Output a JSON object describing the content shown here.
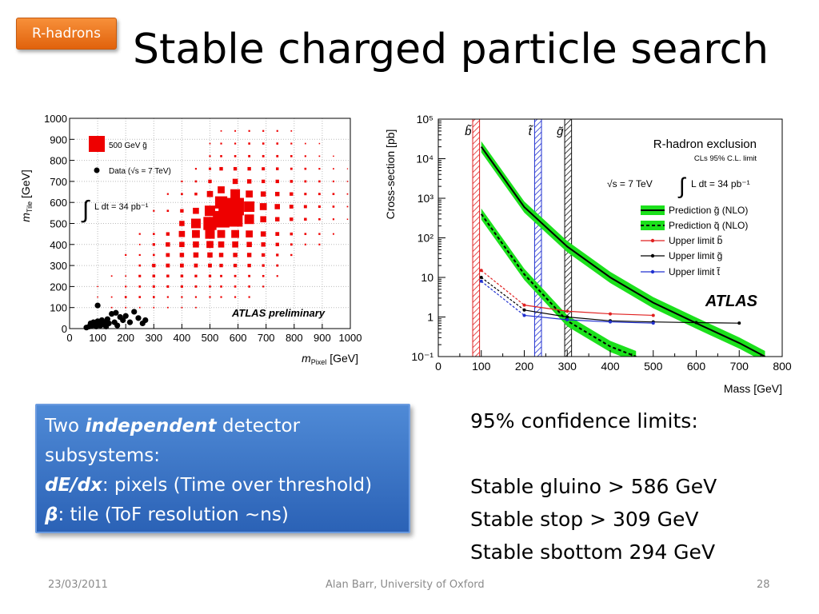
{
  "slide": {
    "tag": "R-hadrons",
    "title": "Stable charged particle search",
    "box": {
      "l1a": "Two ",
      "l1b": "independent",
      "l1c": " detector",
      "l2": "subsystems:",
      "l3a": "dE/dx",
      "l3b": ": pixels (Time over threshold)",
      "l4a": "β",
      "l4b": ": tile  (ToF resolution  ~ns)"
    },
    "limits": {
      "heading": "95% confidence limits:",
      "items": [
        "Stable gluino > 586 GeV",
        "Stable stop >  309 GeV",
        "Stable sbottom 294 GeV"
      ]
    },
    "footer": {
      "date": "23/03/2011",
      "author": "Alan Barr, University of Oxford",
      "page": "28"
    }
  },
  "chart_data": [
    {
      "type": "scatter",
      "xlabel_main": "m",
      "xlabel_sub": "Pixel",
      "xlabel_unit": " [GeV]",
      "ylabel_main": "m",
      "ylabel_sub": "Tile",
      "ylabel_unit": " [GeV]",
      "xlim": [
        0,
        1000
      ],
      "ylim": [
        0,
        1000
      ],
      "xticks": [
        "0",
        "100",
        "200",
        "300",
        "400",
        "500",
        "600",
        "700",
        "800",
        "900",
        "1000"
      ],
      "yticks": [
        "0",
        "100",
        "200",
        "300",
        "400",
        "500",
        "600",
        "700",
        "800",
        "900",
        "1000"
      ],
      "grid": true,
      "legend": [
        "500 GeV g̃",
        "Data (√s = 7 TeV)"
      ],
      "lumi": "L dt = 34 pb⁻¹",
      "experiment": "ATLAS preliminary",
      "signal_color": "#ee0000",
      "data_color": "#000000",
      "signal_boxes": [
        [
          590,
          580,
          1.0
        ],
        [
          560,
          560,
          0.95
        ],
        [
          540,
          520,
          0.95
        ],
        [
          590,
          520,
          0.85
        ],
        [
          640,
          580,
          0.6
        ],
        [
          640,
          520,
          0.55
        ],
        [
          500,
          500,
          0.75
        ],
        [
          540,
          600,
          0.7
        ],
        [
          500,
          560,
          0.6
        ],
        [
          590,
          640,
          0.55
        ],
        [
          640,
          640,
          0.4
        ],
        [
          450,
          500,
          0.55
        ],
        [
          450,
          450,
          0.45
        ],
        [
          500,
          450,
          0.55
        ],
        [
          540,
          450,
          0.45
        ],
        [
          590,
          450,
          0.45
        ],
        [
          540,
          400,
          0.35
        ],
        [
          590,
          400,
          0.35
        ],
        [
          500,
          400,
          0.4
        ],
        [
          450,
          400,
          0.35
        ],
        [
          640,
          450,
          0.4
        ],
        [
          690,
          580,
          0.4
        ],
        [
          690,
          520,
          0.35
        ],
        [
          690,
          640,
          0.3
        ],
        [
          640,
          400,
          0.3
        ],
        [
          690,
          450,
          0.3
        ],
        [
          400,
          450,
          0.35
        ],
        [
          400,
          400,
          0.3
        ],
        [
          400,
          350,
          0.25
        ],
        [
          450,
          350,
          0.3
        ],
        [
          500,
          350,
          0.3
        ],
        [
          540,
          350,
          0.25
        ],
        [
          590,
          350,
          0.25
        ],
        [
          640,
          350,
          0.25
        ],
        [
          690,
          400,
          0.25
        ],
        [
          740,
          580,
          0.3
        ],
        [
          740,
          520,
          0.25
        ],
        [
          740,
          640,
          0.25
        ],
        [
          540,
          660,
          0.4
        ],
        [
          590,
          700,
          0.3
        ],
        [
          640,
          700,
          0.25
        ],
        [
          500,
          640,
          0.35
        ],
        [
          450,
          560,
          0.35
        ],
        [
          400,
          500,
          0.3
        ],
        [
          350,
          400,
          0.25
        ],
        [
          350,
          350,
          0.22
        ],
        [
          300,
          300,
          0.2
        ],
        [
          350,
          300,
          0.22
        ],
        [
          400,
          300,
          0.22
        ],
        [
          450,
          300,
          0.22
        ],
        [
          500,
          300,
          0.22
        ],
        [
          540,
          300,
          0.2
        ],
        [
          590,
          300,
          0.2
        ],
        [
          640,
          300,
          0.2
        ],
        [
          690,
          350,
          0.2
        ],
        [
          740,
          450,
          0.22
        ],
        [
          740,
          400,
          0.2
        ],
        [
          790,
          580,
          0.22
        ],
        [
          790,
          520,
          0.2
        ],
        [
          790,
          640,
          0.2
        ],
        [
          840,
          580,
          0.18
        ],
        [
          840,
          520,
          0.16
        ],
        [
          690,
          700,
          0.2
        ],
        [
          740,
          700,
          0.2
        ],
        [
          640,
          760,
          0.2
        ],
        [
          590,
          760,
          0.2
        ],
        [
          540,
          760,
          0.2
        ],
        [
          690,
          760,
          0.18
        ],
        [
          740,
          760,
          0.16
        ],
        [
          790,
          700,
          0.16
        ],
        [
          300,
          250,
          0.16
        ],
        [
          250,
          250,
          0.14
        ],
        [
          300,
          200,
          0.14
        ],
        [
          250,
          200,
          0.12
        ],
        [
          350,
          250,
          0.16
        ],
        [
          400,
          250,
          0.16
        ],
        [
          450,
          250,
          0.15
        ],
        [
          500,
          250,
          0.15
        ],
        [
          200,
          150,
          0.12
        ],
        [
          250,
          150,
          0.12
        ],
        [
          300,
          150,
          0.12
        ],
        [
          350,
          200,
          0.14
        ],
        [
          400,
          200,
          0.14
        ],
        [
          450,
          200,
          0.13
        ],
        [
          540,
          250,
          0.13
        ],
        [
          590,
          250,
          0.13
        ],
        [
          640,
          250,
          0.13
        ],
        [
          690,
          300,
          0.15
        ],
        [
          740,
          350,
          0.15
        ],
        [
          790,
          450,
          0.16
        ],
        [
          840,
          640,
          0.14
        ],
        [
          890,
          580,
          0.14
        ],
        [
          890,
          640,
          0.13
        ],
        [
          840,
          700,
          0.13
        ],
        [
          790,
          760,
          0.13
        ],
        [
          740,
          820,
          0.13
        ],
        [
          690,
          820,
          0.13
        ],
        [
          640,
          820,
          0.13
        ],
        [
          590,
          820,
          0.12
        ],
        [
          540,
          820,
          0.12
        ],
        [
          500,
          760,
          0.14
        ],
        [
          500,
          700,
          0.2
        ],
        [
          450,
          640,
          0.16
        ],
        [
          400,
          560,
          0.2
        ],
        [
          350,
          450,
          0.2
        ],
        [
          890,
          520,
          0.12
        ],
        [
          940,
          580,
          0.12
        ],
        [
          940,
          640,
          0.12
        ],
        [
          890,
          700,
          0.12
        ],
        [
          840,
          760,
          0.12
        ],
        [
          790,
          820,
          0.12
        ],
        [
          740,
          880,
          0.12
        ],
        [
          690,
          880,
          0.12
        ],
        [
          640,
          880,
          0.12
        ],
        [
          590,
          880,
          0.1
        ],
        [
          540,
          880,
          0.1
        ],
        [
          500,
          820,
          0.1
        ],
        [
          450,
          700,
          0.12
        ],
        [
          400,
          640,
          0.12
        ],
        [
          350,
          560,
          0.12
        ],
        [
          300,
          450,
          0.12
        ],
        [
          300,
          400,
          0.15
        ],
        [
          250,
          300,
          0.12
        ],
        [
          200,
          200,
          0.1
        ],
        [
          150,
          150,
          0.08
        ],
        [
          150,
          100,
          0.08
        ],
        [
          200,
          100,
          0.08
        ],
        [
          250,
          100,
          0.08
        ],
        [
          350,
          150,
          0.1
        ],
        [
          400,
          150,
          0.1
        ],
        [
          450,
          150,
          0.1
        ],
        [
          500,
          200,
          0.12
        ],
        [
          540,
          200,
          0.12
        ],
        [
          590,
          200,
          0.12
        ],
        [
          640,
          200,
          0.12
        ],
        [
          690,
          250,
          0.12
        ],
        [
          740,
          300,
          0.13
        ],
        [
          790,
          400,
          0.13
        ],
        [
          840,
          450,
          0.12
        ],
        [
          890,
          450,
          0.11
        ],
        [
          940,
          520,
          0.1
        ],
        [
          990,
          580,
          0.08
        ],
        [
          990,
          640,
          0.08
        ],
        [
          940,
          700,
          0.1
        ],
        [
          890,
          760,
          0.1
        ],
        [
          840,
          820,
          0.1
        ],
        [
          790,
          880,
          0.1
        ],
        [
          740,
          940,
          0.1
        ],
        [
          690,
          940,
          0.1
        ],
        [
          640,
          940,
          0.1
        ],
        [
          590,
          940,
          0.09
        ],
        [
          540,
          940,
          0.08
        ],
        [
          500,
          880,
          0.08
        ],
        [
          450,
          760,
          0.1
        ],
        [
          400,
          700,
          0.1
        ],
        [
          350,
          640,
          0.1
        ],
        [
          300,
          560,
          0.1
        ],
        [
          250,
          450,
          0.1
        ],
        [
          200,
          350,
          0.1
        ],
        [
          150,
          250,
          0.08
        ],
        [
          100,
          200,
          0.07
        ],
        [
          100,
          150,
          0.07
        ],
        [
          300,
          100,
          0.08
        ],
        [
          350,
          100,
          0.08
        ],
        [
          400,
          100,
          0.08
        ],
        [
          450,
          100,
          0.08
        ],
        [
          500,
          150,
          0.1
        ],
        [
          540,
          150,
          0.1
        ],
        [
          590,
          150,
          0.1
        ],
        [
          640,
          150,
          0.1
        ],
        [
          690,
          200,
          0.1
        ],
        [
          740,
          250,
          0.1
        ],
        [
          790,
          350,
          0.11
        ],
        [
          840,
          400,
          0.1
        ],
        [
          890,
          400,
          0.1
        ],
        [
          940,
          450,
          0.09
        ],
        [
          990,
          520,
          0.07
        ],
        [
          990,
          700,
          0.07
        ],
        [
          940,
          760,
          0.08
        ],
        [
          890,
          820,
          0.08
        ],
        [
          840,
          880,
          0.08
        ],
        [
          790,
          940,
          0.08
        ],
        [
          940,
          820,
          0.07
        ],
        [
          890,
          880,
          0.07
        ],
        [
          990,
          760,
          0.06
        ],
        [
          250,
          350,
          0.1
        ],
        [
          200,
          250,
          0.08
        ],
        [
          250,
          400,
          0.08
        ],
        [
          300,
          350,
          0.12
        ]
      ],
      "data_points": [
        [
          60,
          5
        ],
        [
          70,
          10
        ],
        [
          75,
          25
        ],
        [
          80,
          15
        ],
        [
          85,
          30
        ],
        [
          90,
          20
        ],
        [
          95,
          10
        ],
        [
          100,
          35
        ],
        [
          105,
          25
        ],
        [
          110,
          15
        ],
        [
          115,
          40
        ],
        [
          120,
          20
        ],
        [
          125,
          30
        ],
        [
          130,
          10
        ],
        [
          135,
          45
        ],
        [
          140,
          25
        ],
        [
          150,
          70
        ],
        [
          160,
          30
        ],
        [
          170,
          15
        ],
        [
          180,
          55
        ],
        [
          190,
          40
        ],
        [
          200,
          60
        ],
        [
          215,
          30
        ],
        [
          230,
          80
        ],
        [
          245,
          50
        ],
        [
          260,
          25
        ],
        [
          270,
          40
        ],
        [
          100,
          110
        ],
        [
          165,
          75
        ]
      ]
    },
    {
      "type": "line",
      "title": "R-hadron exclusion",
      "subtitle": "CLs 95% C.L. limit",
      "energy": "√s = 7 TeV",
      "lumi": "L dt = 34 pb⁻¹",
      "experiment": "ATLAS",
      "xlabel": "Mass [GeV]",
      "ylabel": "Cross-section [pb]",
      "xlim": [
        0,
        800
      ],
      "ylim": [
        0.1,
        100000
      ],
      "yscale": "log",
      "xticks": [
        "0",
        "100",
        "200",
        "300",
        "400",
        "500",
        "600",
        "700",
        "800"
      ],
      "yticks": [
        "10⁻¹",
        "1",
        "10",
        "10²",
        "10³",
        "10⁴",
        "10⁵"
      ],
      "legend_placement": "right",
      "exclusion_bands": [
        {
          "label": "b̃",
          "from": 80,
          "to": 96,
          "color": "#e02020"
        },
        {
          "label": "t̃",
          "from": 224,
          "to": 240,
          "color": "#2030d0"
        },
        {
          "label": "g̃",
          "from": 294,
          "to": 310,
          "color": "#111111"
        }
      ],
      "series": [
        {
          "name": "Prediction g̃ (NLO)",
          "color": "#000000",
          "band": "#1ce01c",
          "style": "solid",
          "x": [
            100,
            200,
            300,
            400,
            500,
            600,
            700,
            760
          ],
          "y": [
            20000,
            600,
            60,
            10,
            2.3,
            0.7,
            0.22,
            0.1
          ]
        },
        {
          "name": "Prediction q̃ (NLO)",
          "color": "#000000",
          "band": "#1ce01c",
          "style": "dashed",
          "x": [
            100,
            200,
            300,
            400,
            460
          ],
          "y": [
            400,
            12,
            0.8,
            0.18,
            0.1
          ]
        },
        {
          "name": "Upper limit b̃",
          "color": "#e02020",
          "style": "solid",
          "marker": "triangle-down",
          "x": [
            100,
            200,
            300,
            400,
            500
          ],
          "y": [
            15,
            2,
            1.4,
            1.2,
            1.1
          ],
          "dashed_until": 200
        },
        {
          "name": "Upper limit g̃",
          "color": "#000000",
          "style": "solid",
          "marker": "dot",
          "x": [
            100,
            200,
            300,
            400,
            500,
            600,
            700
          ],
          "y": [
            10,
            1.5,
            1.0,
            0.8,
            0.75,
            0.72,
            0.7
          ],
          "dashed_until": 200
        },
        {
          "name": "Upper limit t̃",
          "color": "#2030d0",
          "style": "solid",
          "marker": "triangle-up",
          "x": [
            100,
            200,
            300,
            400,
            500
          ],
          "y": [
            8,
            1.1,
            0.85,
            0.75,
            0.7
          ],
          "dashed_until": 200
        }
      ]
    }
  ]
}
